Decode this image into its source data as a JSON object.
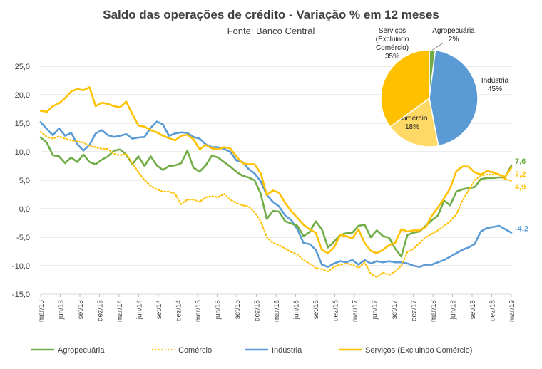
{
  "chart_data": [
    {
      "type": "line",
      "title": "Saldo das operações de crédito - Variação % em 12 meses",
      "subtitle": "Fonte: Banco Central",
      "ylim": [
        -15,
        25
      ],
      "yticks": [
        "25,0",
        "20,0",
        "15,0",
        "10,0",
        "5,0",
        "0,0",
        "-5,0",
        "-10,0",
        "-15,0"
      ],
      "x_tick_labels": [
        "mar/13",
        "jun/13",
        "set/13",
        "dez/13",
        "mar/14",
        "jun/14",
        "set/14",
        "dez/14",
        "mar/15",
        "jun/15",
        "set/15",
        "dez/15",
        "mar/16",
        "jun/16",
        "set/16",
        "dez/16",
        "mar/17",
        "jun/17",
        "set/17",
        "dez/17",
        "mar/18",
        "jun/18",
        "set/18",
        "dez/18",
        "mar/19"
      ],
      "grid": true,
      "legend_position": "bottom",
      "series": [
        {
          "name": "Agropecuária",
          "color": "#70AD47",
          "style": "solid",
          "end_label": "7,6",
          "values": [
            12.5,
            11.6,
            9.4,
            9.2,
            8.0,
            9.0,
            8.2,
            9.5,
            8.2,
            7.8,
            8.6,
            9.2,
            10.2,
            10.4,
            9.5,
            7.8,
            9.2,
            7.5,
            9.2,
            7.6,
            6.8,
            7.5,
            7.6,
            8.0,
            10.2,
            7.2,
            6.5,
            7.6,
            9.3,
            9.0,
            8.2,
            7.4,
            6.5,
            5.8,
            5.5,
            5.0,
            2.6,
            -1.8,
            -0.4,
            -0.5,
            -2.2,
            -2.6,
            -3.0,
            -4.8,
            -4.1,
            -2.2,
            -3.6,
            -6.8,
            -5.8,
            -4.6,
            -4.3,
            -4.2,
            -3.0,
            -2.8,
            -5.0,
            -3.8,
            -4.8,
            -5.1,
            -7.0,
            -8.4,
            -4.6,
            -4.2,
            -4.0,
            -3.0,
            -2.0,
            -1.2,
            1.4,
            0.6,
            3.0,
            3.4,
            3.6,
            3.8,
            5.2,
            5.4,
            5.4,
            5.5,
            5.5,
            7.6
          ]
        },
        {
          "name": "Comércio",
          "color": "#FFC000",
          "style": "dotted",
          "end_label": "4,9",
          "values": [
            13.5,
            12.6,
            12.3,
            12.7,
            12.3,
            12.0,
            11.8,
            11.6,
            11.0,
            10.8,
            10.5,
            10.5,
            9.6,
            9.4,
            9.6,
            8.0,
            6.4,
            5.0,
            4.0,
            3.4,
            3.0,
            3.0,
            2.6,
            0.8,
            1.6,
            1.6,
            1.2,
            2.0,
            2.2,
            2.0,
            2.6,
            1.6,
            1.0,
            0.6,
            0.4,
            -0.6,
            -2.2,
            -5.0,
            -6.0,
            -6.4,
            -7.0,
            -7.6,
            -8.0,
            -9.0,
            -9.6,
            -10.4,
            -10.6,
            -11.0,
            -10.2,
            -9.8,
            -9.6,
            -9.8,
            -10.4,
            -9.4,
            -11.4,
            -12.0,
            -11.2,
            -11.6,
            -11.0,
            -10.0,
            -7.6,
            -7.0,
            -6.0,
            -5.0,
            -4.4,
            -3.8,
            -3.0,
            -2.2,
            -1.0,
            1.4,
            3.2,
            5.0,
            5.8,
            6.0,
            6.0,
            6.0,
            5.2,
            4.9
          ]
        },
        {
          "name": "Indústria",
          "color": "#5B9BD5",
          "style": "solid",
          "end_label": "-4,2",
          "values": [
            15.2,
            14.0,
            12.9,
            14.1,
            12.8,
            13.3,
            11.3,
            10.2,
            11.2,
            13.2,
            13.8,
            12.9,
            12.6,
            12.8,
            13.1,
            12.3,
            12.5,
            12.6,
            14.2,
            15.3,
            14.8,
            12.8,
            13.2,
            13.4,
            13.3,
            12.6,
            12.3,
            11.3,
            10.8,
            10.8,
            10.5,
            10.0,
            8.5,
            8.2,
            7.0,
            6.2,
            4.8,
            2.4,
            1.2,
            0.4,
            -1.2,
            -2.0,
            -3.6,
            -6.0,
            -6.2,
            -7.2,
            -9.8,
            -10.2,
            -9.6,
            -9.2,
            -9.4,
            -9.0,
            -9.8,
            -9.0,
            -9.6,
            -9.2,
            -9.4,
            -9.2,
            -9.4,
            -9.4,
            -9.6,
            -10.0,
            -10.2,
            -9.8,
            -9.8,
            -9.4,
            -9.0,
            -8.4,
            -7.8,
            -7.2,
            -6.8,
            -6.2,
            -4.0,
            -3.4,
            -3.2,
            -3.0,
            -3.6,
            -4.2
          ]
        },
        {
          "name": "Serviços (Excluindo Comércio)",
          "color": "#FFC000",
          "style": "solid",
          "end_label": "7,2",
          "values": [
            17.2,
            17.0,
            18.0,
            18.5,
            19.4,
            20.6,
            21.0,
            20.8,
            21.3,
            18.0,
            18.6,
            18.4,
            18.0,
            17.8,
            18.8,
            16.6,
            14.6,
            14.4,
            13.8,
            13.4,
            12.8,
            12.4,
            12.0,
            12.8,
            13.0,
            12.2,
            10.4,
            11.2,
            10.6,
            10.4,
            10.8,
            10.6,
            9.2,
            8.0,
            7.8,
            7.8,
            6.2,
            2.4,
            3.2,
            2.8,
            1.0,
            -0.4,
            -1.6,
            -2.8,
            -3.6,
            -4.2,
            -7.2,
            -7.8,
            -6.8,
            -4.6,
            -4.8,
            -5.2,
            -3.6,
            -6.0,
            -7.4,
            -7.8,
            -7.2,
            -6.4,
            -6.0,
            -3.6,
            -4.0,
            -3.8,
            -3.8,
            -3.2,
            -1.2,
            0.2,
            1.8,
            3.6,
            6.6,
            7.4,
            7.4,
            6.4,
            6.0,
            6.6,
            6.4,
            6.0,
            5.6,
            7.2
          ]
        }
      ]
    },
    {
      "type": "pie",
      "slices": [
        {
          "name": "Agropecuária",
          "label": "Agropecuária",
          "value": 2,
          "pct_label": "2%",
          "color": "#70AD47"
        },
        {
          "name": "Indústria",
          "label": "Indústria",
          "value": 45,
          "pct_label": "45%",
          "color": "#5B9BD5"
        },
        {
          "name": "Comércio",
          "label": "Comércio",
          "value": 18,
          "pct_label": "18%",
          "color": "#FFD966"
        },
        {
          "name": "Serviços (Excluindo Comércio)",
          "label": "Serviços (Excluindo Comércio)",
          "label_lines": [
            "Serviços",
            "(Excluindo",
            "Comércio)"
          ],
          "value": 35,
          "pct_label": "35%",
          "color": "#FFC000"
        }
      ]
    }
  ]
}
